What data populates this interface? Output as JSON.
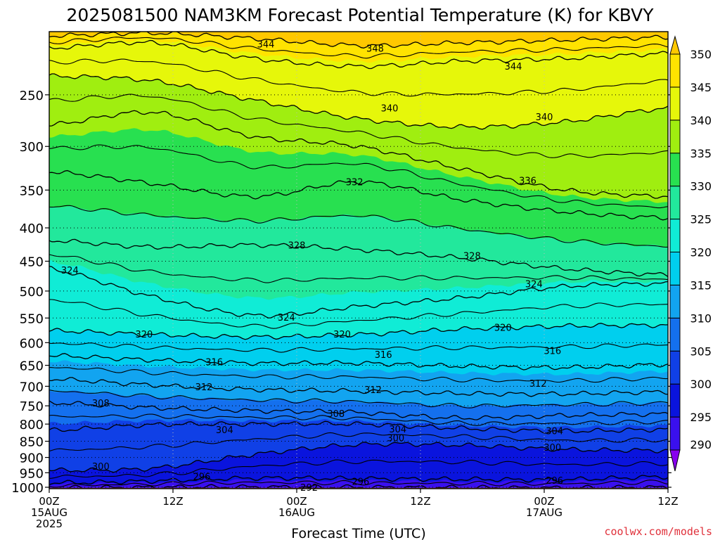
{
  "chart_data": {
    "type": "heatmap",
    "title": "2025081500 NAM3KM Forecast Potential Temperature (K) for KBVY",
    "xlabel": "Forecast Time (UTC)",
    "ylabel": "",
    "x_ticks": [
      {
        "hours": 0,
        "lines": [
          "00Z",
          "15AUG",
          "2025"
        ]
      },
      {
        "hours": 12,
        "lines": [
          "12Z"
        ]
      },
      {
        "hours": 24,
        "lines": [
          "00Z",
          "16AUG"
        ]
      },
      {
        "hours": 36,
        "lines": [
          "12Z"
        ]
      },
      {
        "hours": 48,
        "lines": [
          "00Z",
          "17AUG"
        ]
      },
      {
        "hours": 60,
        "lines": [
          "12Z"
        ]
      }
    ],
    "x_range_hours": [
      0,
      60
    ],
    "y_ticks_hpa": [
      250,
      300,
      350,
      400,
      450,
      500,
      550,
      600,
      650,
      700,
      750,
      800,
      850,
      900,
      950,
      1000
    ],
    "y_range_hpa": [
      200,
      1005
    ],
    "y_scale": "log-pressure (inverted)",
    "grid": "dotted",
    "colorbar": {
      "levels": [
        290,
        295,
        300,
        305,
        310,
        315,
        320,
        325,
        330,
        335,
        340,
        345,
        350
      ],
      "colors": [
        "#8800ee",
        "#3a10ee",
        "#0a14dd",
        "#1040e6",
        "#1470ee",
        "#12a4f0",
        "#00cfee",
        "#10ecd6",
        "#22e89c",
        "#28e050",
        "#a0ee10",
        "#e6f70a",
        "#ffe300",
        "#ffc800"
      ]
    },
    "isotherms_K": [
      {
        "value": 292,
        "p": [
          1002,
          1000,
          999,
          1000,
          1001,
          1002,
          1000
        ]
      },
      {
        "value": 296,
        "p": [
          985,
          978,
          968,
          970,
          972,
          973,
          963
        ]
      },
      {
        "value": 300,
        "p": [
          942,
          935,
          890,
          860,
          862,
          875,
          878
        ]
      },
      {
        "value": 304,
        "p": [
          818,
          802,
          800,
          800,
          812,
          820,
          815
        ]
      },
      {
        "value": 308,
        "p": [
          742,
          755,
          763,
          768,
          783,
          776,
          772
        ]
      },
      {
        "value": 312,
        "p": [
          682,
          697,
          708,
          712,
          718,
          719,
          714
        ]
      },
      {
        "value": 316,
        "p": [
          628,
          638,
          645,
          645,
          652,
          655,
          648
        ]
      },
      {
        "value": 320,
        "p": [
          575,
          583,
          588,
          583,
          572,
          566,
          564
        ]
      },
      {
        "value": 324,
        "p": [
          462,
          510,
          545,
          528,
          512,
          492,
          487
        ]
      },
      {
        "value": 328,
        "p": [
          418,
          428,
          425,
          432,
          445,
          462,
          472
        ]
      },
      {
        "value": 332,
        "p": [
          328,
          342,
          358,
          340,
          362,
          378,
          386
        ]
      },
      {
        "value": 336,
        "p": [
          278,
          266,
          290,
          300,
          325,
          350,
          358
        ]
      },
      {
        "value": 340,
        "p": [
          234,
          238,
          255,
          272,
          280,
          275,
          262
        ]
      },
      {
        "value": 344,
        "p": [
          212,
          208,
          220,
          226,
          222,
          220,
          216
        ]
      },
      {
        "value": 348,
        "p": [
          203,
          201,
          205,
          210,
          208,
          206,
          204
        ]
      }
    ],
    "contour_labels": [
      {
        "value": 344,
        "hour": 21,
        "p": 209
      },
      {
        "value": 348,
        "hour": 31.6,
        "p": 212
      },
      {
        "value": 344,
        "hour": 45,
        "p": 226
      },
      {
        "value": 340,
        "hour": 33,
        "p": 262
      },
      {
        "value": 340,
        "hour": 48,
        "p": 270
      },
      {
        "value": 332,
        "hour": 29.6,
        "p": 340
      },
      {
        "value": 336,
        "hour": 46.4,
        "p": 338
      },
      {
        "value": 328,
        "hour": 24,
        "p": 425
      },
      {
        "value": 328,
        "hour": 41,
        "p": 441
      },
      {
        "value": 324,
        "hour": 2,
        "p": 464
      },
      {
        "value": 324,
        "hour": 47,
        "p": 487
      },
      {
        "value": 324,
        "hour": 23,
        "p": 548
      },
      {
        "value": 320,
        "hour": 9.2,
        "p": 582
      },
      {
        "value": 320,
        "hour": 28.4,
        "p": 582
      },
      {
        "value": 320,
        "hour": 44,
        "p": 568
      },
      {
        "value": 316,
        "hour": 16,
        "p": 642
      },
      {
        "value": 316,
        "hour": 32.4,
        "p": 625
      },
      {
        "value": 316,
        "hour": 48.8,
        "p": 617
      },
      {
        "value": 312,
        "hour": 15,
        "p": 701
      },
      {
        "value": 312,
        "hour": 31.4,
        "p": 708
      },
      {
        "value": 312,
        "hour": 47.4,
        "p": 692
      },
      {
        "value": 308,
        "hour": 5,
        "p": 742
      },
      {
        "value": 308,
        "hour": 27.8,
        "p": 770
      },
      {
        "value": 304,
        "hour": 17,
        "p": 816
      },
      {
        "value": 304,
        "hour": 33.8,
        "p": 814
      },
      {
        "value": 304,
        "hour": 49,
        "p": 819
      },
      {
        "value": 300,
        "hour": 33.6,
        "p": 839
      },
      {
        "value": 300,
        "hour": 48.8,
        "p": 868
      },
      {
        "value": 300,
        "hour": 5,
        "p": 928
      },
      {
        "value": 296,
        "hour": 14.8,
        "p": 962
      },
      {
        "value": 296,
        "hour": 30.2,
        "p": 979
      },
      {
        "value": 296,
        "hour": 49,
        "p": 976
      },
      {
        "value": 292,
        "hour": 25.2,
        "p": 1000
      }
    ]
  },
  "footer": {
    "credit": "coolwx.com/models"
  }
}
